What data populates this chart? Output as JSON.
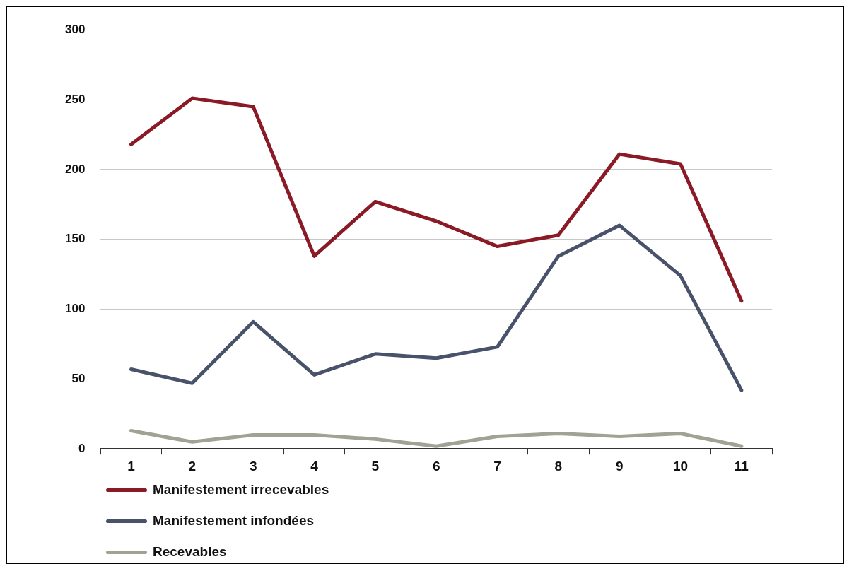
{
  "chart_data": {
    "type": "line",
    "categories": [
      "1",
      "2",
      "3",
      "4",
      "5",
      "6",
      "7",
      "8",
      "9",
      "10",
      "11"
    ],
    "series": [
      {
        "name": "Manifestement irrecevables",
        "color": "#8b1a27",
        "values": [
          218,
          251,
          245,
          138,
          177,
          163,
          145,
          153,
          211,
          204,
          106
        ]
      },
      {
        "name": "Manifestement infondées",
        "color": "#48526a",
        "values": [
          57,
          47,
          91,
          53,
          68,
          65,
          73,
          138,
          160,
          124,
          42
        ]
      },
      {
        "name": "Recevables",
        "color": "#a0a293",
        "values": [
          13,
          5,
          10,
          10,
          7,
          2,
          9,
          11,
          9,
          11,
          2
        ]
      }
    ],
    "ylim": [
      0,
      300
    ],
    "yticks": [
      0,
      50,
      100,
      150,
      200,
      250,
      300
    ],
    "grid": "y",
    "legend": "bottom",
    "marker": "none",
    "line_style": "solid"
  }
}
